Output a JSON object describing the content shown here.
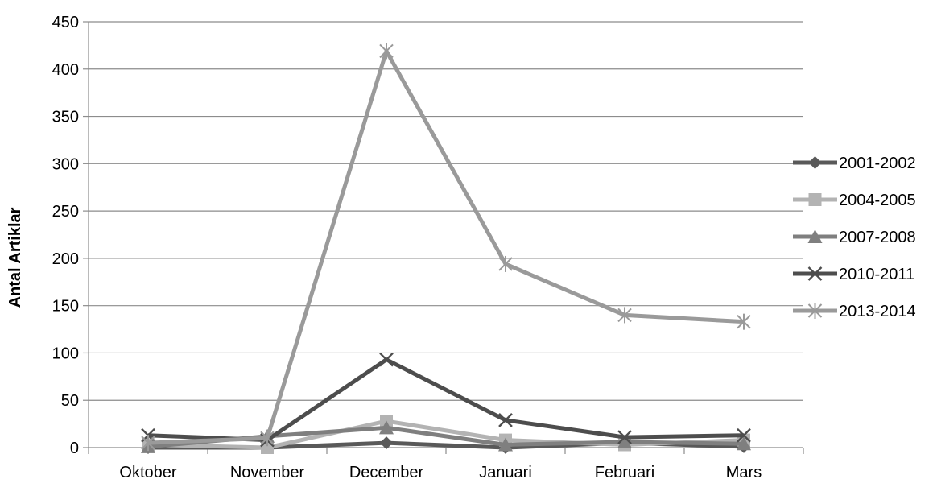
{
  "chart_data": {
    "type": "line",
    "title": "",
    "xlabel": "",
    "ylabel": "Antal Artiklar",
    "ylim": [
      0,
      450
    ],
    "ytick_step": 50,
    "grid": "horizontal",
    "legend_position": "right",
    "categories": [
      "Oktober",
      "November",
      "December",
      "Januari",
      "Februari",
      "Mars"
    ],
    "series": [
      {
        "name": "2001-2002",
        "marker": "diamond",
        "color": "#595959",
        "values": [
          0,
          0,
          5,
          0,
          5,
          1
        ]
      },
      {
        "name": "2004-2005",
        "marker": "square",
        "color": "#b3b3b3",
        "values": [
          3,
          0,
          28,
          8,
          3,
          8
        ]
      },
      {
        "name": "2007-2008",
        "marker": "triangle",
        "color": "#7f7f7f",
        "values": [
          1,
          12,
          21,
          3,
          6,
          4
        ]
      },
      {
        "name": "2010-2011",
        "marker": "x",
        "color": "#4d4d4d",
        "values": [
          13,
          8,
          93,
          29,
          11,
          13
        ]
      },
      {
        "name": "2013-2014",
        "marker": "star",
        "color": "#9a9a9a",
        "values": [
          5,
          10,
          419,
          194,
          140,
          133
        ]
      }
    ]
  }
}
